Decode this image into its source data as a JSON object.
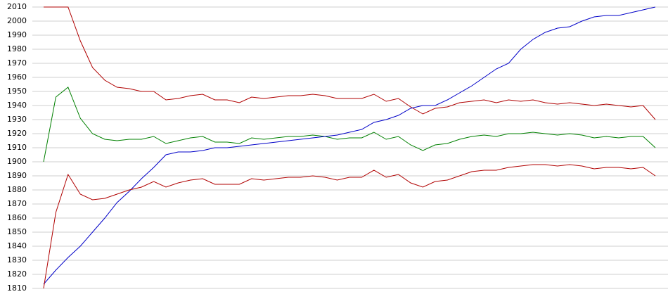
{
  "chart_data": {
    "type": "line",
    "ylim": [
      1810,
      2010
    ],
    "yticks": [
      1810,
      1820,
      1830,
      1840,
      1850,
      1860,
      1870,
      1880,
      1890,
      1900,
      1910,
      1920,
      1930,
      1940,
      1950,
      1960,
      1970,
      1980,
      1990,
      2000,
      2010
    ],
    "grid": true,
    "series": [
      {
        "color": "#b00000",
        "values": [
          2010,
          2010,
          2010,
          1986,
          1967,
          1958,
          1953,
          1952,
          1950,
          1950,
          1944,
          1945,
          1947,
          1948,
          1944,
          1944,
          1942,
          1946,
          1945,
          1946,
          1947,
          1947,
          1948,
          1947,
          1945,
          1945,
          1945,
          1948,
          1943,
          1945,
          1939,
          1934,
          1938,
          1939,
          1942,
          1943,
          1944,
          1942,
          1944,
          1943,
          1944,
          1942,
          1941,
          1942,
          1941,
          1940,
          1941,
          1940,
          1939,
          1940,
          1930
        ]
      },
      {
        "color": "#008000",
        "values": [
          1900,
          1946,
          1953,
          1931,
          1920,
          1916,
          1915,
          1916,
          1916,
          1918,
          1913,
          1915,
          1917,
          1918,
          1914,
          1914,
          1913,
          1917,
          1916,
          1917,
          1918,
          1918,
          1919,
          1918,
          1916,
          1917,
          1917,
          1921,
          1916,
          1918,
          1912,
          1908,
          1912,
          1913,
          1916,
          1918,
          1919,
          1918,
          1920,
          1920,
          1921,
          1920,
          1919,
          1920,
          1919,
          1917,
          1918,
          1917,
          1918,
          1918,
          1910
        ]
      },
      {
        "color": "#0000c8",
        "values": [
          1813,
          1823,
          1832,
          1840,
          1850,
          1860,
          1871,
          1879,
          1888,
          1896,
          1905,
          1907,
          1907,
          1908,
          1910,
          1910,
          1911,
          1912,
          1913,
          1914,
          1915,
          1916,
          1917,
          1918,
          1919,
          1921,
          1923,
          1928,
          1930,
          1933,
          1938,
          1940,
          1940,
          1944,
          1949,
          1954,
          1960,
          1966,
          1970,
          1980,
          1987,
          1992,
          1995,
          1996,
          2000,
          2003,
          2004,
          2004,
          2006,
          2008,
          2010
        ]
      },
      {
        "color": "#b00000",
        "values": [
          1810,
          1864,
          1891,
          1877,
          1873,
          1874,
          1877,
          1880,
          1882,
          1886,
          1882,
          1885,
          1887,
          1888,
          1884,
          1884,
          1884,
          1888,
          1887,
          1888,
          1889,
          1889,
          1890,
          1889,
          1887,
          1889,
          1889,
          1894,
          1889,
          1891,
          1885,
          1882,
          1886,
          1887,
          1890,
          1893,
          1894,
          1894,
          1896,
          1897,
          1898,
          1898,
          1897,
          1898,
          1897,
          1895,
          1896,
          1896,
          1895,
          1896,
          1890
        ]
      }
    ]
  }
}
